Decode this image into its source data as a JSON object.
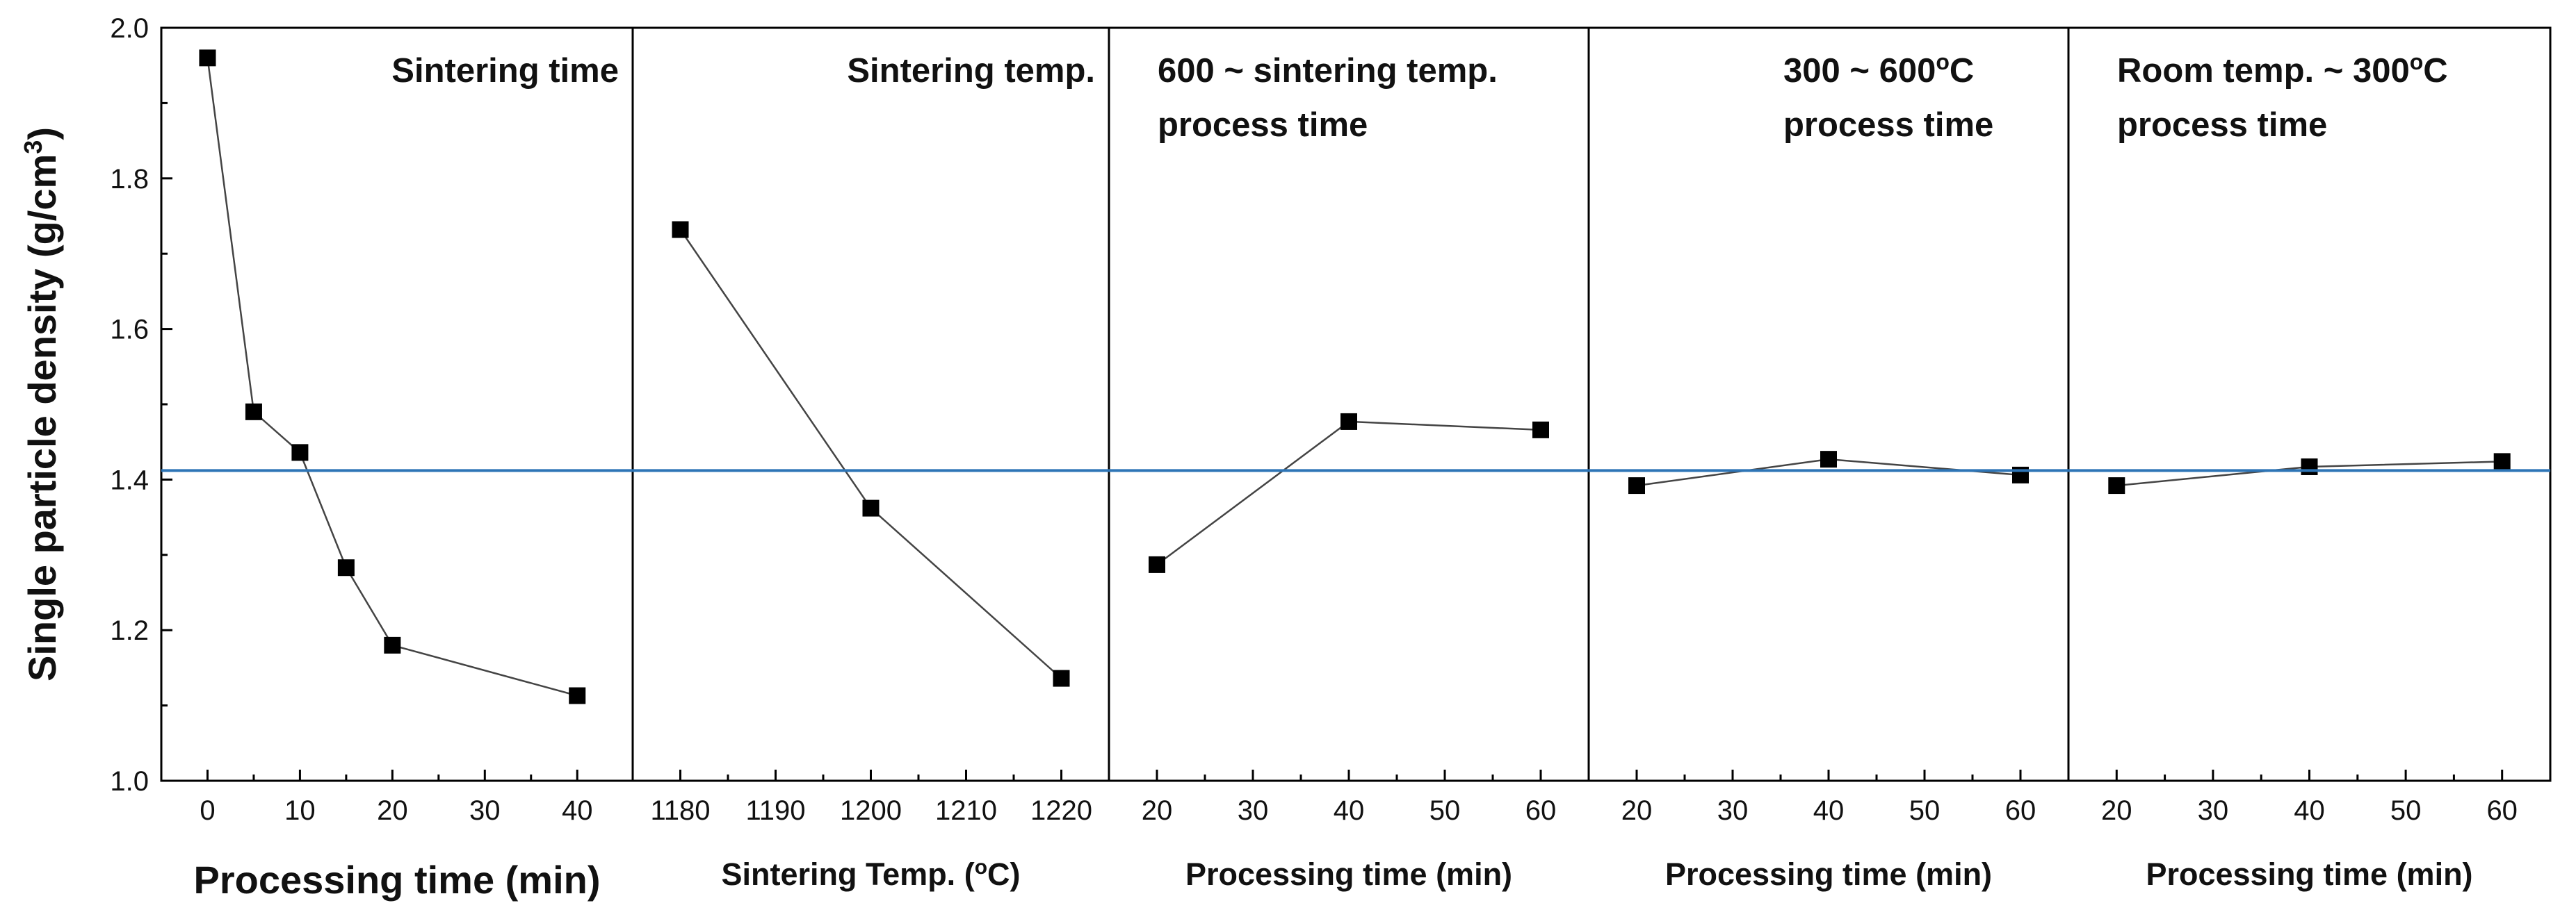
{
  "chart_data": {
    "type": "line",
    "y_axis": {
      "label_main": "Single particle density (g/cm",
      "label_sup": "3",
      "label_close": ")",
      "ylim": [
        1.0,
        2.0
      ],
      "ticks": [
        1.0,
        1.2,
        1.4,
        1.6,
        1.8,
        2.0
      ],
      "tick_labels": [
        "1.0",
        "1.2",
        "1.4",
        "1.6",
        "1.8",
        "2.0"
      ]
    },
    "reference_line": {
      "y": 1.412,
      "color": "#2E75B6"
    },
    "marker_color": "#000000",
    "line_color": "#444444",
    "panels": [
      {
        "title_lines": [
          "Sintering time"
        ],
        "title_sup": [
          "",
          ""
        ],
        "xlabel_main": "Processing time (min)",
        "xlabel_sup": "",
        "xlabel_after": "",
        "xlim": [
          -5,
          46
        ],
        "xticks": [
          0,
          10,
          20,
          30,
          40
        ],
        "xtick_labels": [
          "0",
          "10",
          "20",
          "30",
          "40"
        ],
        "x": [
          0,
          5,
          10,
          15,
          20,
          40
        ],
        "y": [
          1.96,
          1.49,
          1.436,
          1.283,
          1.18,
          1.113
        ]
      },
      {
        "title_lines": [
          "Sintering temp."
        ],
        "title_sup": [
          "",
          ""
        ],
        "xlabel_main": "Sintering Temp. (",
        "xlabel_sup": "o",
        "xlabel_after": "C)",
        "xlim": [
          1175,
          1225
        ],
        "xticks": [
          1180,
          1190,
          1200,
          1210,
          1220
        ],
        "xtick_labels": [
          "1180",
          "1190",
          "1200",
          "1210",
          "1220"
        ],
        "x": [
          1180,
          1200,
          1220
        ],
        "y": [
          1.732,
          1.362,
          1.136
        ]
      },
      {
        "title_lines": [
          "600 ~ sintering temp.",
          "process time"
        ],
        "title_sup": [
          "",
          ""
        ],
        "xlabel_main": "Processing time (min)",
        "xlabel_sup": "",
        "xlabel_after": "",
        "xlim": [
          15,
          65
        ],
        "xticks": [
          20,
          30,
          40,
          50,
          60
        ],
        "xtick_labels": [
          "20",
          "30",
          "40",
          "50",
          "60"
        ],
        "x": [
          20,
          40,
          60
        ],
        "y": [
          1.287,
          1.477,
          1.466
        ]
      },
      {
        "title_lines": [
          "300 ~ 600",
          "process time"
        ],
        "title_sup": [
          "o",
          ""
        ],
        "title_after": [
          "C",
          ""
        ],
        "xlabel_main": "Processing time (min)",
        "xlabel_sup": "",
        "xlabel_after": "",
        "xlim": [
          15,
          65
        ],
        "xticks": [
          20,
          30,
          40,
          50,
          60
        ],
        "xtick_labels": [
          "20",
          "30",
          "40",
          "50",
          "60"
        ],
        "x": [
          20,
          40,
          60
        ],
        "y": [
          1.392,
          1.427,
          1.406
        ]
      },
      {
        "title_lines": [
          "Room temp. ~ 300",
          "process time"
        ],
        "title_sup": [
          "o",
          ""
        ],
        "title_after": [
          "C",
          ""
        ],
        "xlabel_main": "Processing time (min)",
        "xlabel_sup": "",
        "xlabel_after": "",
        "xlim": [
          15,
          65
        ],
        "xticks": [
          20,
          30,
          40,
          50,
          60
        ],
        "xtick_labels": [
          "20",
          "30",
          "40",
          "50",
          "60"
        ],
        "x": [
          20,
          40,
          60
        ],
        "y": [
          1.392,
          1.417,
          1.424
        ]
      }
    ]
  }
}
